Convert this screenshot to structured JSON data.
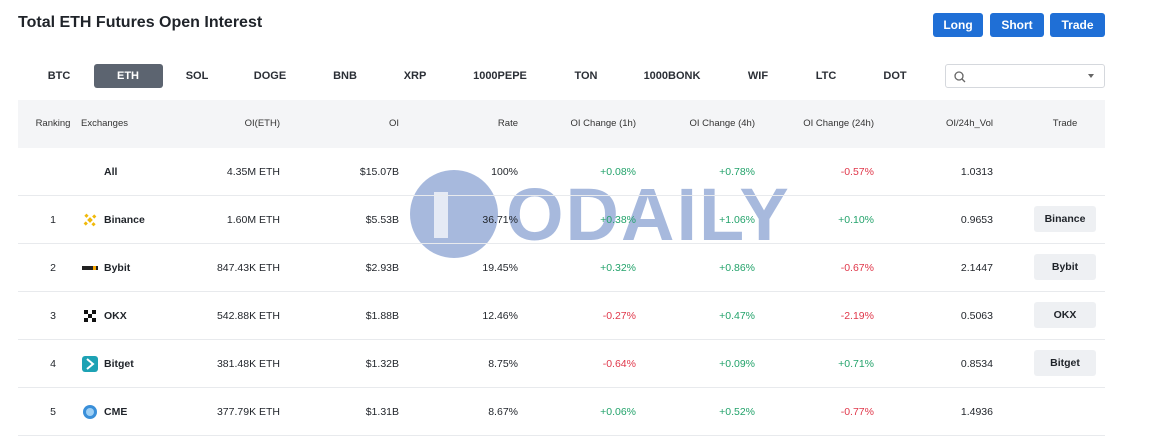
{
  "header": {
    "title": "Total ETH Futures Open Interest",
    "buttons": [
      "Long",
      "Short",
      "Trade"
    ]
  },
  "tabs": {
    "items": [
      "BTC",
      "ETH",
      "SOL",
      "DOGE",
      "BNB",
      "XRP",
      "1000PEPE",
      "TON",
      "1000BONK",
      "WIF",
      "LTC",
      "DOT"
    ],
    "selected": 1
  },
  "table": {
    "columns": [
      "Ranking",
      "Exchanges",
      "OI(ETH)",
      "OI",
      "Rate",
      "OI Change (1h)",
      "OI Change (4h)",
      "OI Change (24h)",
      "OI/24h_Vol",
      "Trade"
    ],
    "rows": [
      [
        null,
        "All",
        "4.35M ETH",
        "$15.07B",
        "100%",
        "+0.08%",
        "+0.78%",
        "-0.57%",
        "1.0313",
        null
      ],
      [
        "1",
        "Binance",
        "1.60M ETH",
        "$5.53B",
        "36.71%",
        "+0.38%",
        "+1.06%",
        "+0.10%",
        "0.9653",
        "Binance"
      ],
      [
        "2",
        "Bybit",
        "847.43K ETH",
        "$2.93B",
        "19.45%",
        "+0.32%",
        "+0.86%",
        "-0.67%",
        "2.1447",
        "Bybit"
      ],
      [
        "3",
        "OKX",
        "542.88K ETH",
        "$1.88B",
        "12.46%",
        "-0.27%",
        "+0.47%",
        "-2.19%",
        "0.5063",
        "OKX"
      ],
      [
        "4",
        "Bitget",
        "381.48K ETH",
        "$1.32B",
        "8.75%",
        "-0.64%",
        "+0.09%",
        "+0.71%",
        "0.8534",
        "Bitget"
      ],
      [
        "5",
        "CME",
        "377.79K ETH",
        "$1.31B",
        "8.67%",
        "+0.06%",
        "+0.52%",
        "-0.77%",
        "1.4936",
        null
      ]
    ]
  },
  "watermark": "ODAILY"
}
